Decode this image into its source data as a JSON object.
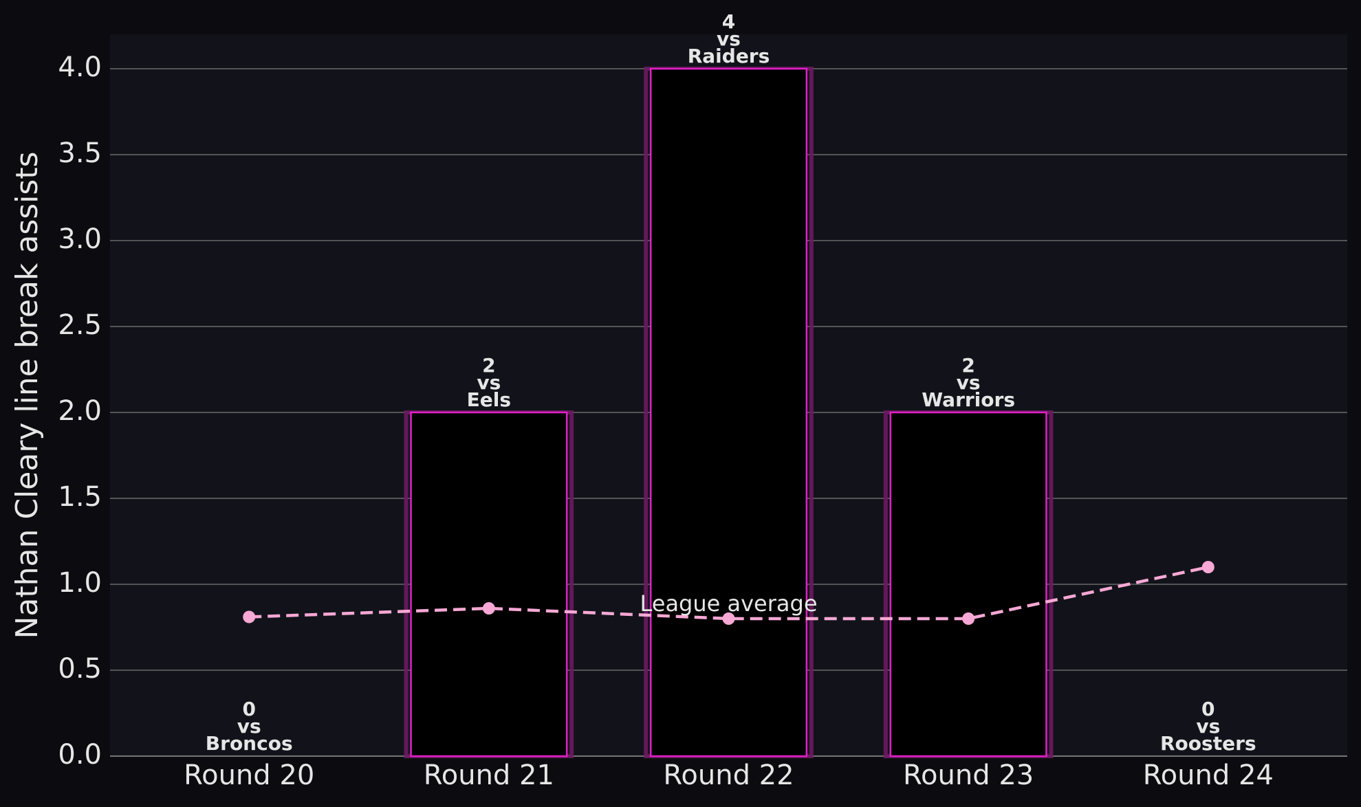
{
  "chart_data": {
    "type": "bar",
    "y_label": "Nathan Cleary line break assists",
    "categories": [
      "Round 20",
      "Round 21",
      "Round 22",
      "Round 23",
      "Round 24"
    ],
    "values": [
      0,
      2,
      4,
      2,
      0
    ],
    "opponents": [
      "Broncos",
      "Eels",
      "Raiders",
      "Warriors",
      "Roosters"
    ],
    "vs_text": "vs",
    "color": "#000000",
    "edge_color": "#e020c8",
    "glow_color": "#6e1a62",
    "line_series": {
      "name": "League average",
      "color": "#f7a8d4",
      "values": [
        0.81,
        0.86,
        0.8,
        0.8,
        1.1
      ]
    },
    "ylim": [
      0,
      4.2
    ],
    "yticks": [
      {
        "value": 0,
        "label": "0.0"
      },
      0.5,
      {
        "value": 1,
        "label": "1.0"
      },
      1.5,
      {
        "value": 2,
        "label": "2.0"
      },
      2.5,
      {
        "value": 3,
        "label": "3.0"
      },
      3.5,
      {
        "value": 4,
        "label": "4.0"
      }
    ],
    "grid": true
  }
}
